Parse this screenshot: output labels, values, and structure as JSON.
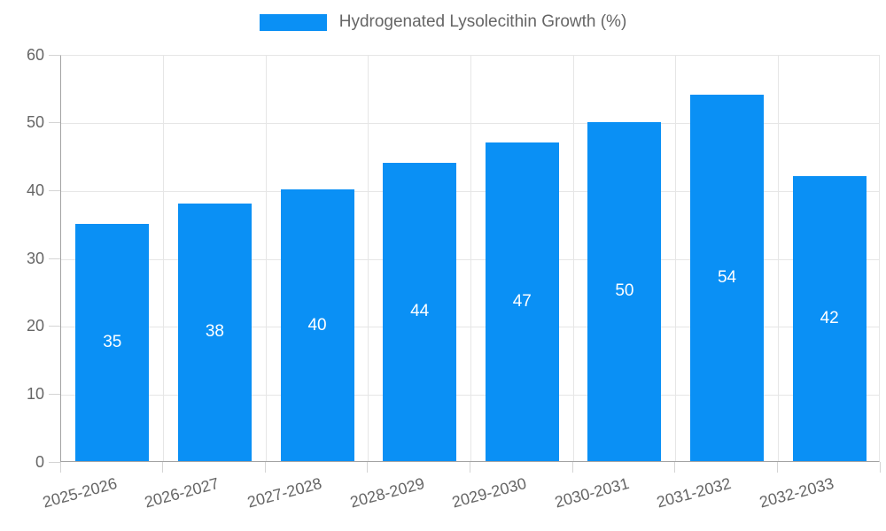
{
  "chart_data": {
    "type": "bar",
    "title": "Hydrogenated Lysolecithin Growth (%)",
    "legend": {
      "label": "Hydrogenated Lysolecithin Growth (%)",
      "position": "top"
    },
    "categories": [
      "2025-2026",
      "2026-2027",
      "2027-2028",
      "2028-2029",
      "2029-2030",
      "2030-2031",
      "2031-2032",
      "2032-2033"
    ],
    "values": [
      35,
      38,
      40,
      44,
      47,
      50,
      54,
      42
    ],
    "xlabel": "",
    "ylabel": "",
    "ylim": [
      0,
      60
    ],
    "yticks": [
      0,
      10,
      20,
      30,
      40,
      50,
      60
    ],
    "grid": true,
    "colors": {
      "bar": "#0a90f5",
      "value_label": "#ffffff",
      "axis_line": "#a3a3a3",
      "gridline": "#e6e6e6",
      "tick_mark": "#d4d4d4",
      "tick_text": "#666666",
      "legend_text": "#666666"
    }
  }
}
